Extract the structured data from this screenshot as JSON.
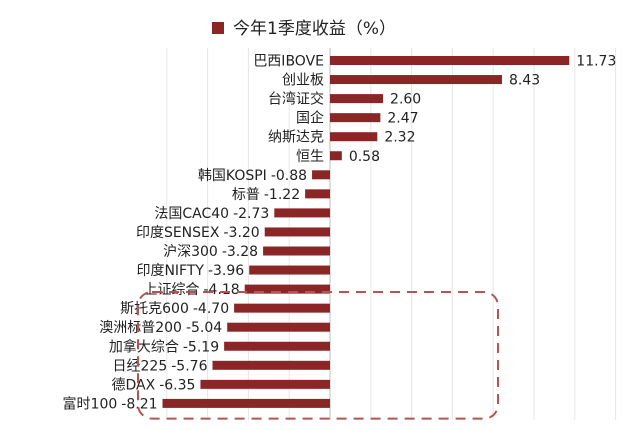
{
  "chart_data": {
    "type": "bar",
    "orientation": "horizontal",
    "title": "",
    "xlabel": "",
    "ylabel": "",
    "grid": true,
    "legend_position": "top",
    "series": [
      {
        "name": "今年1季度收益（%）",
        "color": "#8B2626",
        "values": [
          11.73,
          8.43,
          2.6,
          2.47,
          2.32,
          0.58,
          -0.88,
          -1.22,
          -2.73,
          -3.2,
          -3.28,
          -3.96,
          -4.18,
          -4.7,
          -5.04,
          -5.19,
          -5.76,
          -6.35,
          -8.21
        ],
        "value_labels": [
          "11.73",
          "8.43",
          "2.60",
          "2.47",
          "2.32",
          "0.58",
          "-0.88",
          "-1.22",
          "-2.73",
          "-3.20",
          "-3.28",
          "-3.96",
          "-4.18",
          "-4.70",
          "-5.04",
          "-5.19",
          "-5.76",
          "-6.35",
          "-8.21"
        ]
      }
    ],
    "categories": [
      "巴西IBOVE",
      "创业板",
      "台湾证交",
      "国企",
      "纳斯达克",
      "恒生",
      "韩国KOSPI",
      "标普",
      "法国CAC40",
      "印度SENSEX",
      "沪深300",
      "印度NIFTY",
      "上证综合",
      "斯托克600",
      "澳洲标普200",
      "加拿大综合",
      "日经225",
      "德DAX",
      "富时100"
    ],
    "xlim": [
      -8.21,
      11.73
    ],
    "highlight": {
      "style": "dashed rounded box",
      "color": "#B5554F",
      "categories": [
        "斯托克600",
        "澳洲标普200",
        "加拿大综合",
        "日经225",
        "德DAX",
        "富时100"
      ]
    }
  }
}
